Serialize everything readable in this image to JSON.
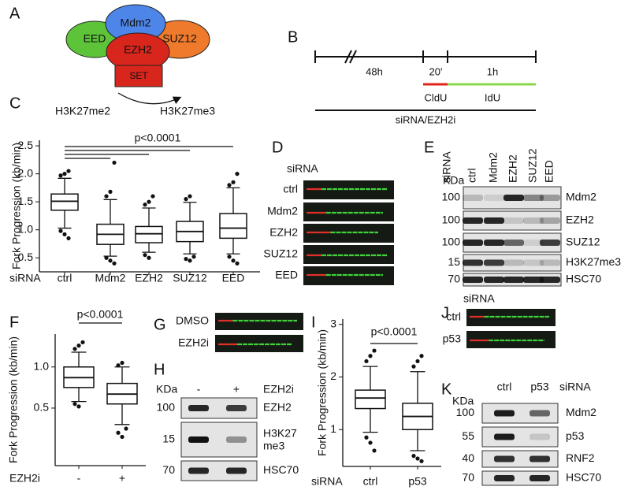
{
  "panel_labels": [
    "A",
    "B",
    "C",
    "D",
    "E",
    "F",
    "G",
    "H",
    "I",
    "J",
    "K"
  ],
  "diagram_a": {
    "proteins": [
      "EED",
      "Mdm2",
      "SUZ12",
      "EZH2"
    ],
    "domain": "SET",
    "substrate": "H3K27me2",
    "product": "H3K27me3"
  },
  "timeline_b": {
    "durations": [
      "48h",
      "20'",
      "1h"
    ],
    "labels": [
      "CldU",
      "IdU"
    ],
    "treatment": "siRNA/EZH2i"
  },
  "chart_data": [
    {
      "type": "box",
      "y_label": "Fork Progression (kb/min)",
      "x_label": "siRNA",
      "annotation": "p<0.0001",
      "categories": [
        "ctrl",
        "Mdm2",
        "EZH2",
        "SUZ12",
        "EED"
      ],
      "boxes": [
        {
          "whislo": 1.03,
          "q1": 1.35,
          "med": 1.51,
          "q3": 1.64,
          "whishi": 1.92,
          "outliers": [
            1.97,
            2.0,
            2.05,
            0.98,
            0.92,
            0.85
          ]
        },
        {
          "whislo": 0.53,
          "q1": 0.74,
          "med": 0.92,
          "q3": 1.1,
          "whishi": 1.54,
          "outliers": [
            1.6,
            1.68,
            2.2,
            0.5,
            0.45,
            0.4
          ]
        },
        {
          "whislo": 0.6,
          "q1": 0.77,
          "med": 0.93,
          "q3": 1.06,
          "whishi": 1.39,
          "outliers": [
            1.45,
            1.5,
            1.6,
            0.55,
            0.5
          ]
        },
        {
          "whislo": 0.57,
          "q1": 0.79,
          "med": 0.97,
          "q3": 1.15,
          "whishi": 1.49,
          "outliers": [
            1.55,
            1.6,
            0.52,
            0.48,
            0.45
          ]
        },
        {
          "whislo": 0.57,
          "q1": 0.85,
          "med": 1.03,
          "q3": 1.29,
          "whishi": 1.75,
          "outliers": [
            1.8,
            1.85,
            2.0,
            0.52,
            0.45,
            0.4
          ]
        }
      ],
      "ylim": [
        0.25,
        2.6
      ],
      "yticks": [
        0.5,
        {
          "value": 1,
          "label": "1.0"
        },
        1.5,
        {
          "value": 2,
          "label": "2.0"
        },
        2.5
      ]
    },
    {
      "type": "box",
      "y_label": "Fork Progression (kb/min)",
      "x_label": "EZH2i",
      "annotation": "p<0.0001",
      "categories": [
        "-",
        "+"
      ],
      "boxes": [
        {
          "whislo": 0.58,
          "q1": 0.75,
          "med": 0.87,
          "q3": 1.0,
          "whishi": 1.18,
          "outliers": [
            1.22,
            1.26,
            1.3,
            0.55,
            0.52
          ]
        },
        {
          "whislo": 0.3,
          "q1": 0.55,
          "med": 0.67,
          "q3": 0.8,
          "whishi": 1.0,
          "outliers": [
            1.02,
            1.05,
            0.25,
            0.2,
            0.15
          ]
        }
      ],
      "ylim": [
        -0.2,
        1.4
      ],
      "yticks": [
        0.5,
        {
          "value": 1,
          "label": "1.0"
        }
      ]
    },
    {
      "type": "box",
      "y_label": "Fork Progression (kb/min)",
      "x_label": "siRNA",
      "annotation": "p<0.0001",
      "categories": [
        "ctrl",
        "p53"
      ],
      "boxes": [
        {
          "whislo": 0.95,
          "q1": 1.4,
          "med": 1.6,
          "q3": 1.75,
          "whishi": 2.2,
          "outliers": [
            2.3,
            2.4,
            2.5,
            0.85,
            0.75,
            0.6
          ]
        },
        {
          "whislo": 0.6,
          "q1": 1.0,
          "med": 1.25,
          "q3": 1.5,
          "whishi": 2.1,
          "outliers": [
            2.2,
            2.3,
            2.4,
            0.5,
            0.45,
            0.4
          ]
        }
      ],
      "ylim": [
        0.3,
        3.1
      ],
      "yticks": [
        1,
        2,
        3
      ]
    }
  ],
  "fibers_d": {
    "header": "siRNA",
    "rows": [
      "ctrl",
      "Mdm2",
      "EZH2",
      "SUZ12",
      "EED"
    ]
  },
  "blot_e": {
    "header": "siRNA",
    "lanes": [
      "ctrl",
      "Mdm2",
      "EZH2",
      "SUZ12",
      "EED"
    ],
    "unit": "KDa",
    "rows": [
      {
        "marker": "100",
        "protein": "Mdm2"
      },
      {
        "marker": "100",
        "protein": "EZH2"
      },
      {
        "marker": "100",
        "protein": "SUZ12"
      },
      {
        "marker": "15",
        "protein": "H3K27me3"
      },
      {
        "marker": "70",
        "protein": "HSC70"
      }
    ]
  },
  "fibers_g": {
    "rows": [
      "DMSO",
      "EZH2i"
    ]
  },
  "blot_h": {
    "unit": "KDa",
    "lanes": [
      "-",
      "+"
    ],
    "treatment": "EZH2i",
    "rows": [
      {
        "marker": "100",
        "protein": "EZH2"
      },
      {
        "marker": "15",
        "protein": "H3K27\nme3"
      },
      {
        "marker": "70",
        "protein": "HSC70"
      }
    ]
  },
  "fibers_j": {
    "header": "siRNA",
    "rows": [
      "ctrl",
      "p53"
    ]
  },
  "blot_k": {
    "unit": "KDa",
    "lanes": [
      "ctrl",
      "p53"
    ],
    "treatment": "siRNA",
    "rows": [
      {
        "marker": "100",
        "protein": "Mdm2"
      },
      {
        "marker": "55",
        "protein": "p53"
      },
      {
        "marker": "40",
        "protein": "RNF2"
      },
      {
        "marker": "70",
        "protein": "HSC70"
      }
    ]
  }
}
